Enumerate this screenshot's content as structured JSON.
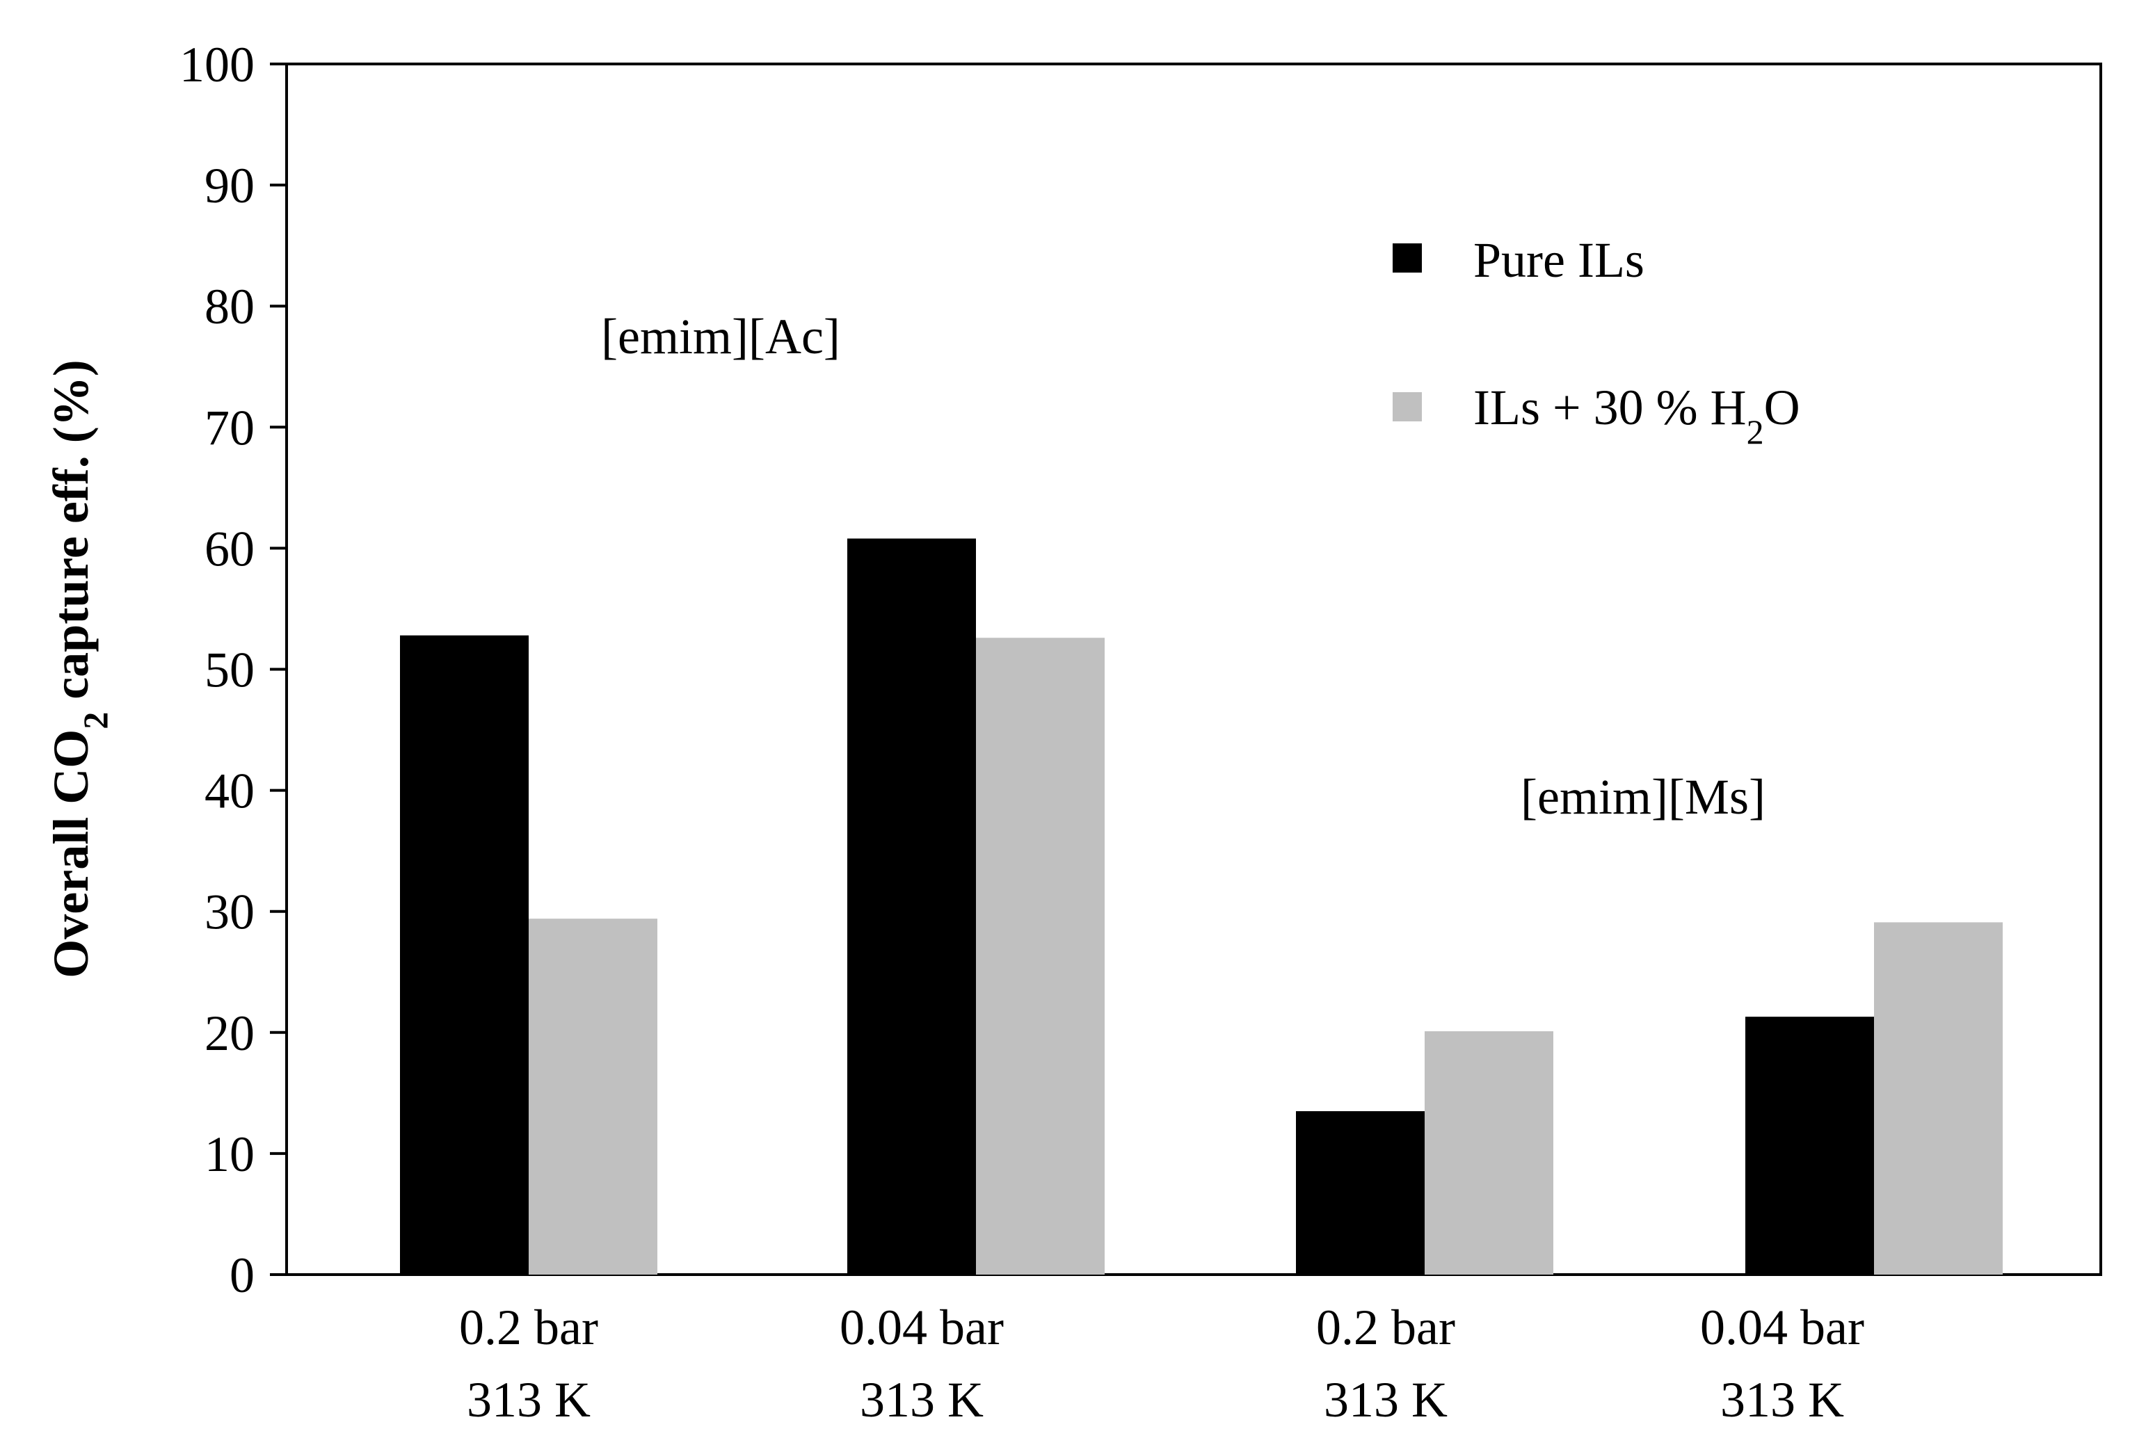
{
  "chart_data": {
    "type": "bar",
    "ylabel_parts": [
      "Overall CO",
      "2",
      " capture  eff. (%)"
    ],
    "ylim": [
      0,
      100
    ],
    "yticks": [
      0,
      10,
      20,
      30,
      40,
      50,
      60,
      70,
      80,
      90,
      100
    ],
    "categories": [
      {
        "line1": "0.2 bar",
        "line2": "313 K"
      },
      {
        "line1": "0.04 bar",
        "line2": "313 K"
      },
      {
        "line1": "0.2 bar",
        "line2": "313 K"
      },
      {
        "line1": "0.04 bar",
        "line2": "313 K"
      }
    ],
    "series": [
      {
        "name": "Pure ILs",
        "color": "#000000",
        "values": [
          52.8,
          60.8,
          13.5,
          21.3
        ]
      },
      {
        "name": "ILs + 30 % H2O",
        "color": "#c0c0c0",
        "values": [
          29.4,
          52.6,
          20.1,
          29.1
        ]
      }
    ],
    "legend": {
      "position": "top-right",
      "entries": [
        {
          "parts": [
            "Pure ILs"
          ]
        },
        {
          "parts": [
            "ILs + 30 % H",
            "2",
            "O"
          ]
        }
      ]
    },
    "annotations": [
      "[emim][Ac]",
      "[emim][Ms]"
    ]
  }
}
